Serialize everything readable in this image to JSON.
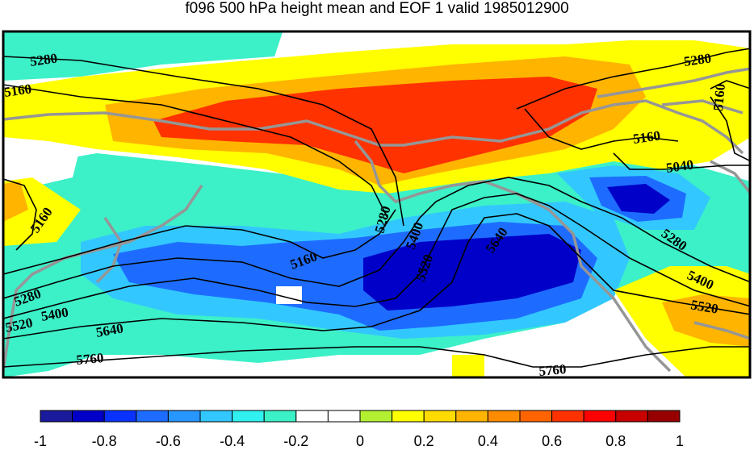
{
  "title": "f096 500 hPa height mean and EOF 1 valid 1985012900",
  "contour_levels": [
    "5040",
    "5160",
    "5280",
    "5400",
    "5520",
    "5640",
    "5760"
  ],
  "contour_labels": [
    {
      "text": "5280"
    },
    {
      "text": "5160"
    },
    {
      "text": "5160"
    },
    {
      "text": "5280"
    },
    {
      "text": "5400"
    },
    {
      "text": "5520"
    },
    {
      "text": "5640"
    },
    {
      "text": "5760"
    },
    {
      "text": "5160"
    },
    {
      "text": "5280"
    },
    {
      "text": "5400"
    },
    {
      "text": "5520"
    },
    {
      "text": "5640"
    },
    {
      "text": "5280"
    },
    {
      "text": "5160"
    },
    {
      "text": "5160"
    },
    {
      "text": "5040"
    },
    {
      "text": "5280"
    },
    {
      "text": "5400"
    },
    {
      "text": "5520"
    },
    {
      "text": "5760"
    }
  ],
  "colorbar": {
    "colors": [
      "#1a1a9c",
      "#0000c8",
      "#0a32ff",
      "#1e6cff",
      "#2896ff",
      "#32c8ff",
      "#30f0f0",
      "#3cf0c8",
      "#ffffff",
      "#ffffff",
      "#b4f032",
      "#ffff00",
      "#ffdc00",
      "#ffb400",
      "#ff8c00",
      "#ff6400",
      "#ff3200",
      "#ff0000",
      "#c80000",
      "#960000"
    ],
    "tick_labels": [
      "-1",
      "-0.8",
      "-0.6",
      "-0.4",
      "-0.2",
      "0",
      "0.2",
      "0.4",
      "0.6",
      "0.8",
      "1"
    ]
  },
  "legend_colors": {
    "coast": "#969696",
    "contour": "#000000",
    "frame": "#000000"
  }
}
